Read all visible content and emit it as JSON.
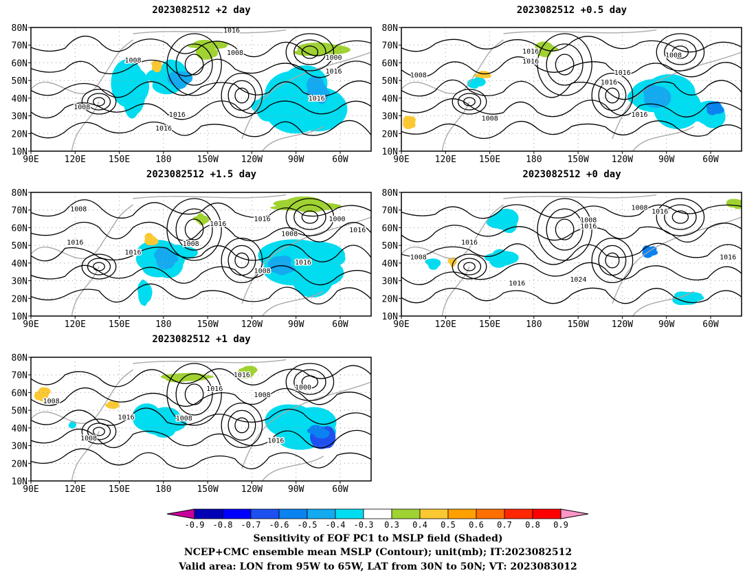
{
  "panels": [
    {
      "id": "p2d",
      "title": "2023082512 +2 day"
    },
    {
      "id": "p05d",
      "title": "2023082512 +0.5 day"
    },
    {
      "id": "p15d",
      "title": "2023082512 +1.5 day"
    },
    {
      "id": "p0d",
      "title": "2023082512 +0 day"
    },
    {
      "id": "p1d",
      "title": "2023082512 +1 day"
    }
  ],
  "axes": {
    "lat_ticks": [
      "80N",
      "70N",
      "60N",
      "50N",
      "40N",
      "30N",
      "20N",
      "10N"
    ],
    "lon_ticks": [
      "90E",
      "120E",
      "150E",
      "180",
      "150W",
      "120W",
      "90W",
      "60W"
    ]
  },
  "contour_labels": {
    "p2d": [
      "1016",
      "1008",
      "1008",
      "1000",
      "1016",
      "1008",
      "1016",
      "1016",
      "1016"
    ],
    "p05d": [
      "1008",
      "1016",
      "1016",
      "1008",
      "1016",
      "1008",
      "1016",
      "1016"
    ],
    "p15d": [
      "1008",
      "1016",
      "1016",
      "1016",
      "1008",
      "1016",
      "1008",
      "1000",
      "1016",
      "1008",
      "1016"
    ],
    "p0d": [
      "1016",
      "1008",
      "1016",
      "1008",
      "1016",
      "1024",
      "1016",
      "1008",
      "1016"
    ],
    "p1d": [
      "1008",
      "1008",
      "1016",
      "1008",
      "1016",
      "1016",
      "1008",
      "1000",
      "1016"
    ]
  },
  "colorbar": {
    "labels": [
      "-0.9",
      "-0.8",
      "-0.7",
      "-0.6",
      "-0.5",
      "-0.4",
      "-0.3",
      "0.3",
      "0.4",
      "0.5",
      "0.6",
      "0.7",
      "0.8",
      "0.9"
    ],
    "colors": [
      "#0000b4",
      "#0000ff",
      "#1e50f0",
      "#0a82f0",
      "#14aaf0",
      "#00dcf0",
      "#ffffff",
      "#a0d232",
      "#fac832",
      "#ffa000",
      "#ff6e00",
      "#ff2800",
      "#ff0000"
    ],
    "left_end_color": "#c8009b",
    "right_end_color": "#ff96c8"
  },
  "footer": {
    "line1": "Sensitivity of EOF PC1 to MSLP field (Shaded)",
    "line2": "NCEP+CMC ensemble mean MSLP (Contour); unit(mb); IT:2023082512",
    "line3": "Valid area: LON from 95W to 65W, LAT from 30N to 50N; VT: 2023083012"
  }
}
